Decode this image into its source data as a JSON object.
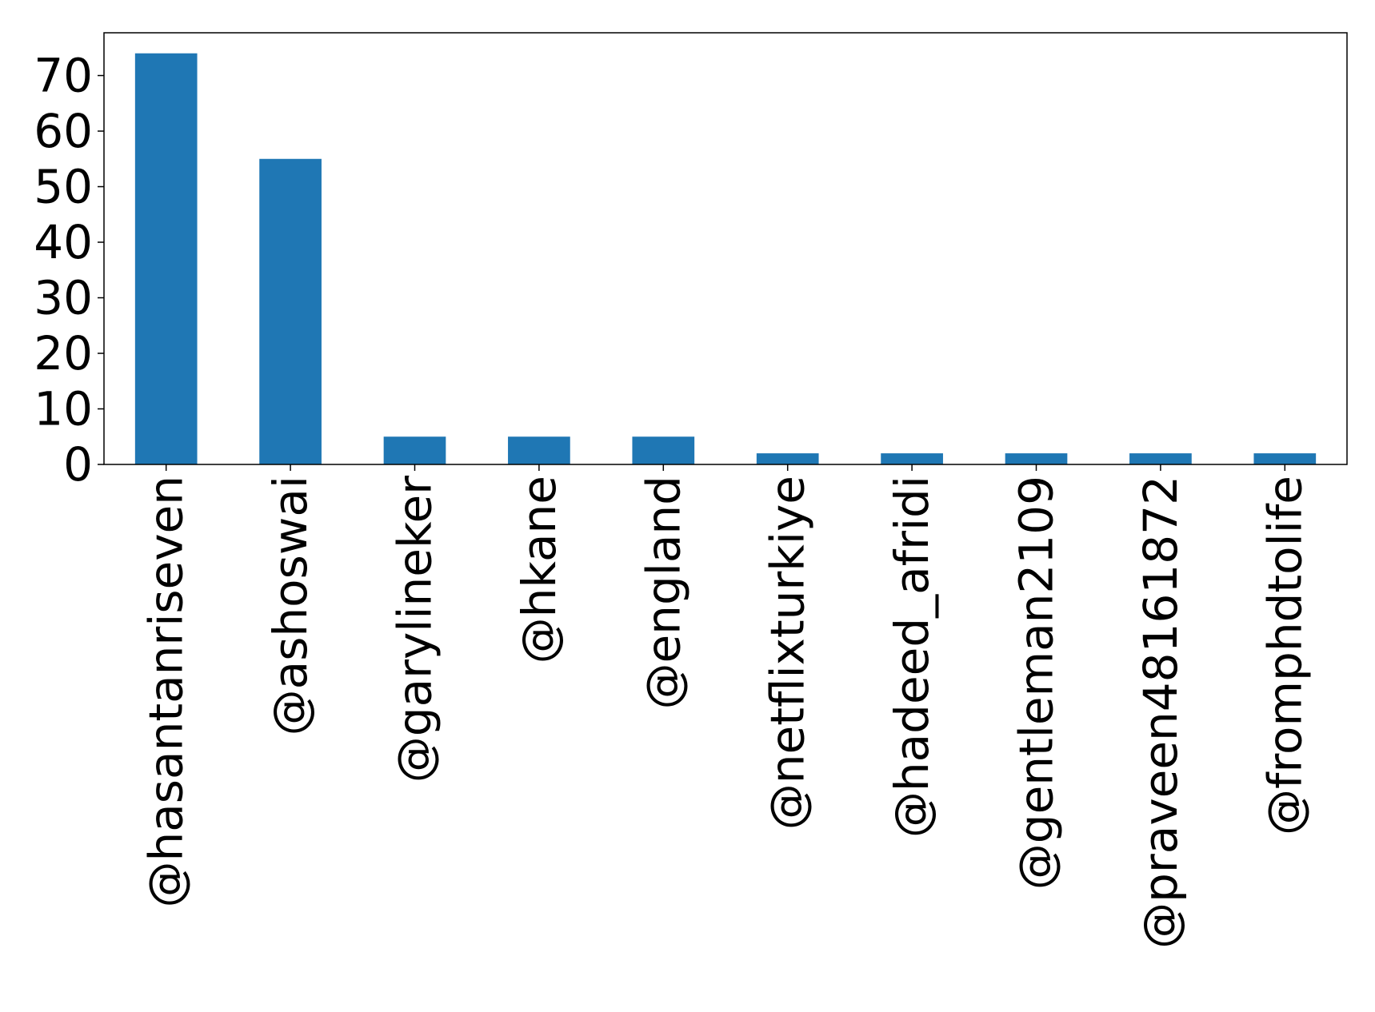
{
  "chart_data": {
    "type": "bar",
    "title": "",
    "xlabel": "",
    "ylabel": "",
    "categories": [
      "@hasantanriseven",
      "@ashoswai",
      "@garylineker",
      "@hkane",
      "@england",
      "@netflixturkiye",
      "@hadeed_afridi",
      "@gentleman2109",
      "@praveen48161872",
      "@fromphdtolife"
    ],
    "values": [
      74,
      55,
      5,
      5,
      5,
      2,
      2,
      2,
      2,
      2
    ],
    "ylim": [
      0,
      77.7
    ],
    "yticks": [
      0,
      10,
      20,
      30,
      40,
      50,
      60,
      70
    ],
    "grid": false,
    "legend": "none",
    "colors": {
      "bar": "#1f77b4",
      "axis": "#000000"
    }
  }
}
